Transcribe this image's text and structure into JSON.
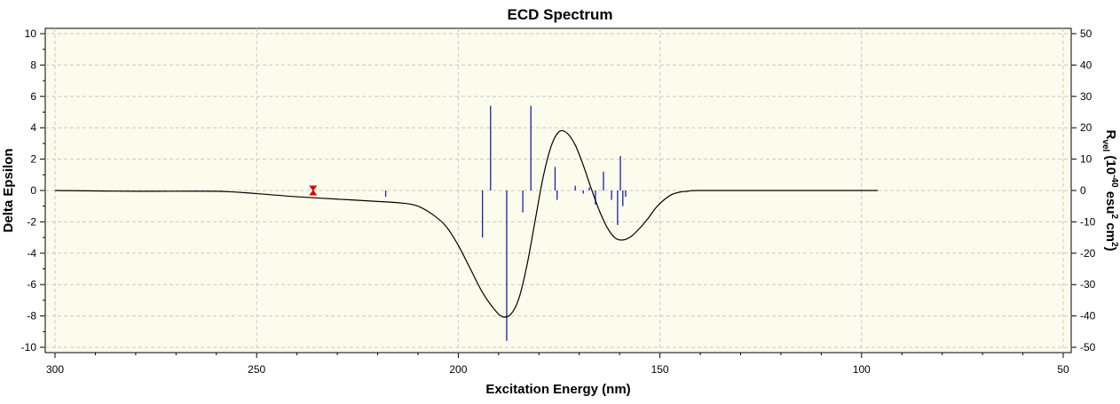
{
  "chart_data": {
    "type": "line",
    "title": "ECD Spectrum",
    "xlabel": "Excitation Energy (nm)",
    "ylabel": "Delta Epsilon",
    "y2label": {
      "base": "R",
      "sub": "vel",
      "pre": " (10",
      "sup1": "-40",
      "mid": " esu",
      "sup2": "2",
      "post": " cm",
      "sup3": "2",
      "close": ")"
    },
    "xlim": [
      300,
      50
    ],
    "ylim": [
      -10,
      10
    ],
    "y2lim": [
      -50,
      50
    ],
    "x_major_ticks": [
      300,
      250,
      200,
      150,
      100,
      50
    ],
    "x_minor_step": 10,
    "y_major_ticks": [
      -10,
      -8,
      -6,
      -4,
      -2,
      0,
      2,
      4,
      6,
      8,
      10
    ],
    "y_minor_step": 1,
    "y2_major_ticks": [
      -50,
      -40,
      -30,
      -20,
      -10,
      0,
      10,
      20,
      30,
      40,
      50
    ],
    "grid": true,
    "colors": {
      "plot_background": "#fcfcec",
      "curve": "#000000",
      "sticks": "#1c1cb4",
      "marker": "#e00000",
      "grid": "#c8c8c8"
    },
    "series": [
      {
        "type": "line",
        "x": [
          300,
          280,
          260,
          250,
          240,
          230,
          220,
          214,
          210,
          206,
          203,
          200,
          197,
          194,
          191,
          189,
          187,
          185,
          183,
          181,
          179,
          177,
          175,
          173,
          171,
          169,
          167,
          165,
          163,
          161,
          159,
          157,
          155,
          153,
          151,
          149,
          147,
          145,
          143,
          140,
          120,
          96
        ],
        "y": [
          0,
          -0.05,
          -0.05,
          -0.2,
          -0.4,
          -0.55,
          -0.7,
          -0.8,
          -1.0,
          -1.6,
          -2.3,
          -3.5,
          -5.0,
          -6.5,
          -7.6,
          -8.05,
          -7.9,
          -6.9,
          -4.8,
          -2.0,
          0.8,
          2.8,
          3.75,
          3.65,
          2.9,
          1.6,
          0.1,
          -1.3,
          -2.4,
          -3.05,
          -3.15,
          -2.9,
          -2.4,
          -1.8,
          -1.1,
          -0.6,
          -0.25,
          -0.1,
          -0.05,
          0,
          0,
          0
        ]
      },
      {
        "type": "sticks",
        "axis": "right",
        "x": [
          218,
          194,
          192,
          188,
          184,
          182,
          176,
          175.5,
          171,
          169,
          167.5,
          166,
          164,
          162,
          160.5,
          159.8,
          159.2,
          158.5
        ],
        "y": [
          -2,
          -15,
          27,
          -48,
          -7,
          27,
          7.5,
          -3,
          1.5,
          -1,
          1,
          -4.5,
          6,
          -3,
          -11,
          11,
          -5,
          -2
        ]
      }
    ],
    "marker": {
      "x": 236,
      "y": 0
    }
  }
}
